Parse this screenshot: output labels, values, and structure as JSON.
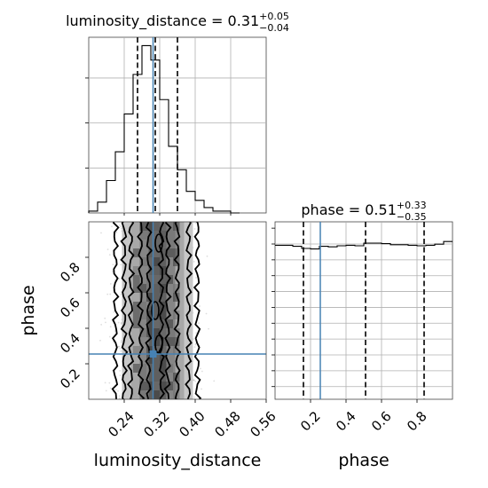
{
  "chart_data": [
    {
      "panel": "luminosity_distance-marginal",
      "type": "line",
      "title_param": "luminosity_distance",
      "title_value": "0.31",
      "title_plus": "+0.05",
      "title_minus": "−0.04",
      "xlim": [
        0.16,
        0.56
      ],
      "grid": true,
      "bins": [
        0.16,
        0.18,
        0.2,
        0.22,
        0.24,
        0.26,
        0.28,
        0.3,
        0.32,
        0.34,
        0.36,
        0.38,
        0.4,
        0.42,
        0.44,
        0.46,
        0.48,
        0.5
      ],
      "counts": [
        1,
        6,
        18,
        34,
        55,
        77,
        93,
        85,
        63,
        37,
        24,
        12,
        7,
        3,
        1,
        1,
        0
      ],
      "quantile_lines": [
        0.27,
        0.31,
        0.36
      ],
      "truth": 0.305
    },
    {
      "panel": "phase-vs-luminosity_distance",
      "type": "scatter",
      "xlabel": "luminosity_distance",
      "ylabel": "phase",
      "xlim": [
        0.16,
        0.56
      ],
      "ylim": [
        0.0,
        1.0
      ],
      "xticks": [
        "0.24",
        "0.32",
        "0.40",
        "0.48",
        "0.56"
      ],
      "yticks": [
        "0.2",
        "0.4",
        "0.6",
        "0.8"
      ],
      "truth": [
        0.305,
        0.255
      ],
      "density_bands": [
        {
          "level": 1,
          "x": [
            0.235,
            0.395
          ]
        },
        {
          "level": 2,
          "x": [
            0.255,
            0.375
          ]
        },
        {
          "level": 3,
          "x": [
            0.275,
            0.355
          ]
        },
        {
          "level": 4,
          "x": [
            0.295,
            0.335
          ]
        }
      ]
    },
    {
      "panel": "phase-marginal",
      "type": "line",
      "title_param": "phase",
      "title_value": "0.51",
      "title_plus": "+0.33",
      "title_minus": "−0.35",
      "xlim": [
        0.0,
        1.0
      ],
      "xticks": [
        "0.2",
        "0.4",
        "0.6",
        "0.8"
      ],
      "grid": true,
      "counts": [
        81,
        81,
        79,
        75,
        74,
        79,
        78,
        80,
        81,
        80,
        85,
        85,
        84,
        82,
        82,
        81,
        80,
        81,
        83,
        88
      ],
      "quantile_lines": [
        0.16,
        0.51,
        0.84
      ],
      "truth": 0.255
    }
  ]
}
